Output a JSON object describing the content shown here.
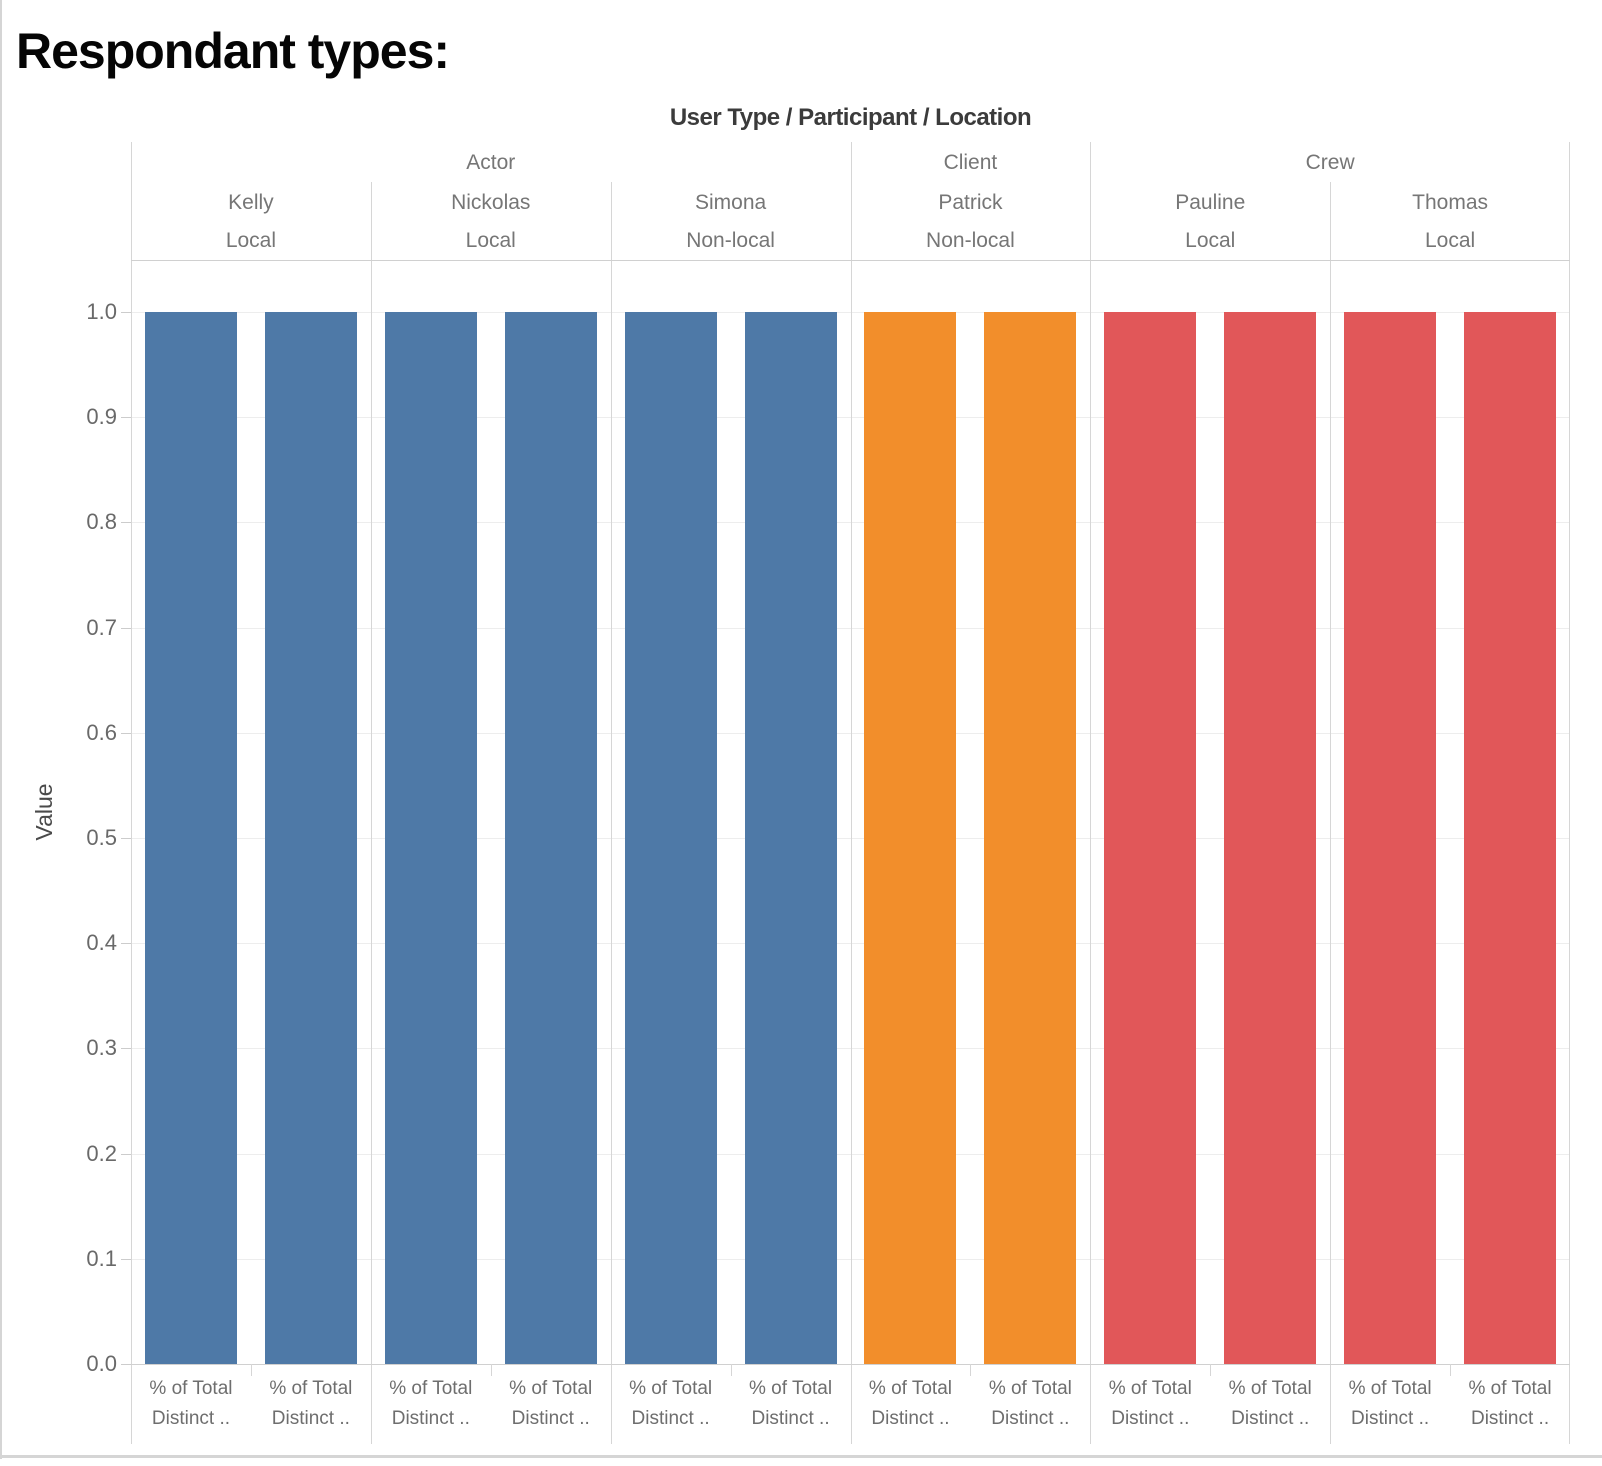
{
  "window": {
    "background": "#ffffff",
    "border_color": "#d5d5d5"
  },
  "chart_data": {
    "type": "bar",
    "title": "Respondant types:",
    "column_field_label": "User Type / Participant / Location",
    "ylabel": "Value",
    "ylim": [
      0.0,
      1.0
    ],
    "ytick_labels": [
      "0.0",
      "0.1",
      "0.2",
      "0.3",
      "0.4",
      "0.5",
      "0.6",
      "0.7",
      "0.8",
      "0.9",
      "1.0"
    ],
    "grid": true,
    "legend_position": "none",
    "measure_label_lines": [
      "% of Total",
      "Distinct .."
    ],
    "groups": [
      {
        "user_type": "Actor",
        "color": "#4e79a7",
        "participants": [
          {
            "name": "Kelly",
            "location": "Local",
            "values": [
              1.0,
              1.0
            ]
          },
          {
            "name": "Nickolas",
            "location": "Local",
            "values": [
              1.0,
              1.0
            ]
          },
          {
            "name": "Simona",
            "location": "Non-local",
            "values": [
              1.0,
              1.0
            ]
          }
        ]
      },
      {
        "user_type": "Client",
        "color": "#f28e2b",
        "participants": [
          {
            "name": "Patrick",
            "location": "Non-local",
            "values": [
              1.0,
              1.0
            ]
          }
        ]
      },
      {
        "user_type": "Crew",
        "color": "#e15759",
        "participants": [
          {
            "name": "Pauline",
            "location": "Local",
            "values": [
              1.0,
              1.0
            ]
          },
          {
            "name": "Thomas",
            "location": "Local",
            "values": [
              1.0,
              1.0
            ]
          }
        ]
      }
    ]
  }
}
